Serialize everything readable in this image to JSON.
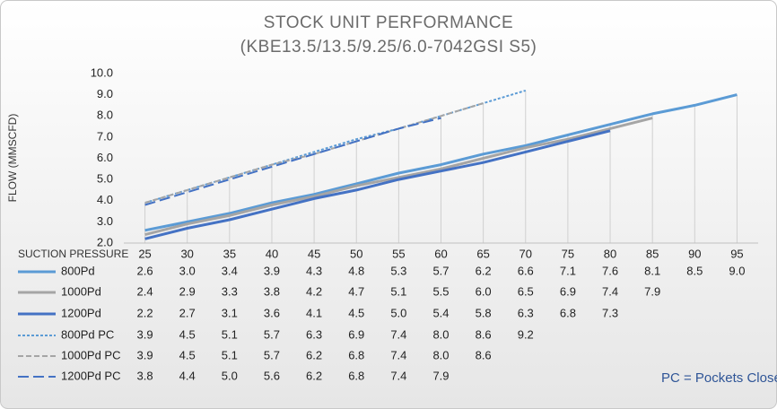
{
  "chart_data": {
    "type": "line",
    "title": "STOCK UNIT PERFORMANCE",
    "subtitle": "(KBE13.5/13.5/9.25/6.0-7042GSI S5)",
    "y_label": "FLOW (MMSCFD)",
    "x_label": "SUCTION PRESSURE",
    "annotation": "PC = Pockets Closed",
    "categories": [
      "25",
      "30",
      "35",
      "40",
      "45",
      "50",
      "55",
      "60",
      "65",
      "70",
      "75",
      "80",
      "85",
      "90",
      "95"
    ],
    "ylim": [
      2,
      10
    ],
    "yticks": [
      {
        "value": 2,
        "label": "2.0"
      },
      {
        "value": 3,
        "label": "3.0"
      },
      {
        "value": 4,
        "label": "4.0"
      },
      {
        "value": 5,
        "label": "5.0"
      },
      {
        "value": 6,
        "label": "6.0"
      },
      {
        "value": 7,
        "label": "7.0"
      },
      {
        "value": 8,
        "label": "8.0"
      },
      {
        "value": 9,
        "label": "9.0"
      },
      {
        "value": 10,
        "label": "10.0"
      }
    ],
    "grid": false,
    "drop_lines": true,
    "series": [
      {
        "name": "800Pd",
        "color": "#5b9bd5",
        "line_style": "solid",
        "values": [
          2.6,
          3.0,
          3.4,
          3.9,
          4.3,
          4.8,
          5.3,
          5.7,
          6.2,
          6.6,
          7.1,
          7.6,
          8.1,
          8.5,
          9.0
        ],
        "value_labels": [
          "2.6",
          "3.0",
          "3.4",
          "3.9",
          "4.3",
          "4.8",
          "5.3",
          "5.7",
          "6.2",
          "6.6",
          "7.1",
          "7.6",
          "8.1",
          "8.5",
          "9.0"
        ]
      },
      {
        "name": "1000Pd",
        "color": "#a5a5a5",
        "line_style": "solid",
        "values": [
          2.4,
          2.9,
          3.3,
          3.8,
          4.2,
          4.7,
          5.1,
          5.5,
          6.0,
          6.5,
          6.9,
          7.4,
          7.9,
          null,
          null
        ],
        "value_labels": [
          "2.4",
          "2.9",
          "3.3",
          "3.8",
          "4.2",
          "4.7",
          "5.1",
          "5.5",
          "6.0",
          "6.5",
          "6.9",
          "7.4",
          "7.9",
          null,
          null
        ]
      },
      {
        "name": "1200Pd",
        "color": "#4472c4",
        "line_style": "solid",
        "values": [
          2.2,
          2.7,
          3.1,
          3.6,
          4.1,
          4.5,
          5.0,
          5.4,
          5.8,
          6.3,
          6.8,
          7.3,
          null,
          null,
          null
        ],
        "value_labels": [
          "2.2",
          "2.7",
          "3.1",
          "3.6",
          "4.1",
          "4.5",
          "5.0",
          "5.4",
          "5.8",
          "6.3",
          "6.8",
          "7.3",
          null,
          null,
          null
        ]
      },
      {
        "name": "800Pd PC",
        "color": "#5b9bd5",
        "line_style": "dotted",
        "values": [
          3.9,
          4.5,
          5.1,
          5.7,
          6.3,
          6.9,
          7.4,
          8.0,
          8.6,
          9.2,
          null,
          null,
          null,
          null,
          null
        ],
        "value_labels": [
          "3.9",
          "4.5",
          "5.1",
          "5.7",
          "6.3",
          "6.9",
          "7.4",
          "8.0",
          "8.6",
          "9.2",
          null,
          null,
          null,
          null,
          null
        ]
      },
      {
        "name": "1000Pd PC",
        "color": "#a5a5a5",
        "line_style": "dashed",
        "values": [
          3.9,
          4.5,
          5.1,
          5.7,
          6.2,
          6.8,
          7.4,
          8.0,
          8.6,
          null,
          null,
          null,
          null,
          null,
          null
        ],
        "value_labels": [
          "3.9",
          "4.5",
          "5.1",
          "5.7",
          "6.2",
          "6.8",
          "7.4",
          "8.0",
          "8.6",
          null,
          null,
          null,
          null,
          null,
          null
        ]
      },
      {
        "name": "1200Pd PC",
        "color": "#4472c4",
        "line_style": "longdash",
        "values": [
          3.8,
          4.4,
          5.0,
          5.6,
          6.2,
          6.8,
          7.4,
          7.9,
          null,
          null,
          null,
          null,
          null,
          null,
          null
        ],
        "value_labels": [
          "3.8",
          "4.4",
          "5.0",
          "5.6",
          "6.2",
          "6.8",
          "7.4",
          "7.9",
          null,
          null,
          null,
          null,
          null,
          null,
          null
        ]
      }
    ]
  }
}
